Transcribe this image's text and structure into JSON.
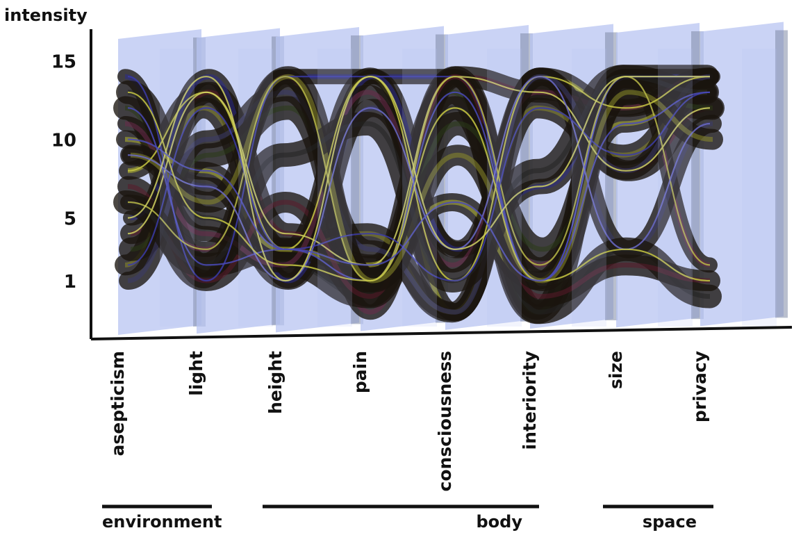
{
  "chart_data": {
    "type": "line",
    "title": "",
    "ylabel": "intensity",
    "xlabel": "",
    "y_ticks": [
      "15",
      "10",
      "5",
      "1"
    ],
    "y_tick_values": [
      15,
      10,
      5,
      1
    ],
    "ylim": [
      -2,
      17
    ],
    "grid": false,
    "categories": [
      "asepticism",
      "light",
      "height",
      "pain",
      "consciousness",
      "interiority",
      "size",
      "privacy"
    ],
    "groups": [
      {
        "label": "environment",
        "categories": [
          "asepticism",
          "light"
        ]
      },
      {
        "label": "body",
        "categories": [
          "height",
          "pain",
          "consciousness",
          "interiority"
        ]
      },
      {
        "label": "space",
        "categories": [
          "size",
          "privacy"
        ]
      }
    ],
    "series": [
      {
        "values": [
          14,
          1,
          14,
          14,
          14,
          -1,
          14,
          14
        ]
      },
      {
        "values": [
          8,
          13,
          3,
          14,
          -1,
          14,
          12,
          14
        ]
      },
      {
        "values": [
          4,
          13,
          4,
          2,
          14,
          13,
          8,
          12
        ]
      },
      {
        "values": [
          12,
          2,
          3,
          1,
          13,
          -1,
          14,
          14
        ]
      },
      {
        "values": [
          6,
          3,
          14,
          -1,
          14,
          2,
          14,
          2
        ]
      },
      {
        "values": [
          9,
          7,
          1,
          12,
          3,
          14,
          3,
          11
        ]
      },
      {
        "values": [
          2,
          12,
          3,
          4,
          -1,
          12,
          9,
          13
        ]
      },
      {
        "values": [
          13,
          5,
          2,
          0,
          12,
          -1,
          3,
          0
        ]
      },
      {
        "values": [
          5,
          14,
          1,
          14,
          3,
          7,
          14,
          14
        ]
      },
      {
        "values": [
          10,
          8,
          3,
          2,
          6,
          1,
          11,
          13
        ]
      },
      {
        "values": [
          7,
          1,
          6,
          0,
          14,
          0,
          2,
          1
        ]
      },
      {
        "values": [
          3,
          9,
          12,
          1,
          11,
          3,
          13,
          12
        ]
      },
      {
        "values": [
          11,
          4,
          2,
          13,
          2,
          13,
          12,
          14
        ]
      },
      {
        "values": [
          1,
          10,
          13,
          3,
          -1,
          14,
          8,
          14
        ]
      },
      {
        "values": [
          9,
          6,
          14,
          1,
          9,
          1,
          13,
          10
        ]
      },
      {
        "values": [
          6,
          2,
          9,
          11,
          1,
          8,
          14,
          13
        ]
      }
    ],
    "colors": {
      "panel": "#b8c4f2",
      "panel_edge": "#9aa8e6",
      "band_dark": "#1a140e",
      "accents": [
        "#2a2a8a",
        "#b4b830",
        "#5a1a2a",
        "#2a3a18",
        "#6a2a4a",
        "#3a3a6a",
        "#8a8a2a",
        "#222222"
      ]
    }
  }
}
